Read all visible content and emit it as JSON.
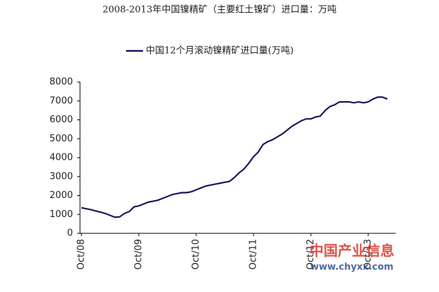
{
  "chart_data": {
    "type": "line",
    "title": "2008-2013年中国镍精矿（主要红土镍矿）进口量：万吨",
    "watermark": [
      "中国产业信息",
      "www.chyxx.com"
    ],
    "categories": [
      "Oct/08",
      null,
      null,
      null,
      null,
      null,
      null,
      null,
      null,
      null,
      null,
      null,
      "Oct/09",
      null,
      null,
      null,
      null,
      null,
      null,
      null,
      null,
      null,
      null,
      null,
      "Oct/10",
      null,
      null,
      null,
      null,
      null,
      null,
      null,
      null,
      null,
      null,
      null,
      "Oct/11",
      null,
      null,
      null,
      null,
      null,
      null,
      null,
      null,
      null,
      null,
      null,
      "Oct/12",
      null,
      null,
      null,
      null,
      null,
      null,
      null,
      null,
      null,
      null,
      null,
      "Oct/13",
      null,
      null,
      null,
      null
    ],
    "series": [
      {
        "name": "中国12个月滚动镍精矿进口量(万吨)",
        "color": "#1a1a5e",
        "values": [
          1350,
          1300,
          1250,
          1180,
          1120,
          1050,
          950,
          850,
          870,
          1050,
          1150,
          1400,
          1450,
          1550,
          1650,
          1700,
          1750,
          1850,
          1950,
          2050,
          2100,
          2150,
          2150,
          2200,
          2300,
          2400,
          2500,
          2550,
          2600,
          2650,
          2700,
          2750,
          2950,
          3200,
          3400,
          3700,
          4050,
          4300,
          4700,
          4850,
          4950,
          5100,
          5250,
          5450,
          5650,
          5800,
          5950,
          6050,
          6050,
          6150,
          6200,
          6500,
          6700,
          6800,
          6950,
          6950,
          6950,
          6900,
          6950,
          6900,
          6950,
          7100,
          7200,
          7200,
          7100
        ]
      }
    ],
    "ylim": [
      0,
      8000
    ],
    "yticks": [
      0,
      1000,
      2000,
      3000,
      4000,
      5000,
      6000,
      7000,
      8000
    ],
    "grid": false
  }
}
